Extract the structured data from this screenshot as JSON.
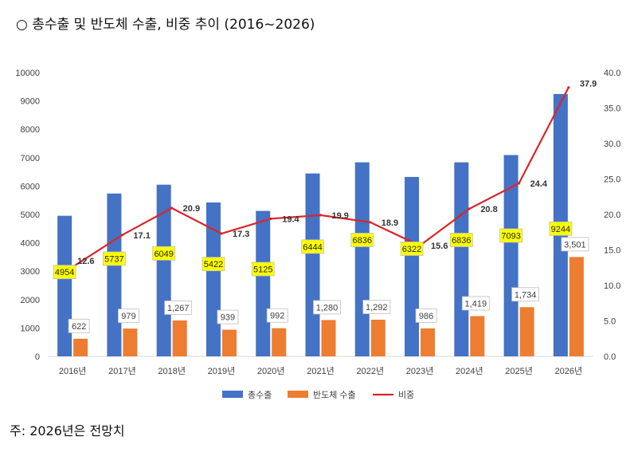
{
  "title": "○ 총수출 및 반도체 수출, 비중 추이 (2016~2026)",
  "note": "주: 2026년은 전망치",
  "chart_data": {
    "type": "bar",
    "categories": [
      "2016년",
      "2017년",
      "2018년",
      "2019년",
      "2020년",
      "2021년",
      "2022년",
      "2023년",
      "2024년",
      "2025년",
      "2026년"
    ],
    "series": [
      {
        "name": "총수출",
        "axis": "left",
        "kind": "bar",
        "color": "#4472C4",
        "values": [
          4954,
          5737,
          6049,
          5422,
          5125,
          6444,
          6836,
          6322,
          6836,
          7093,
          9244
        ],
        "labels": [
          "4954",
          "5737",
          "6049",
          "5422",
          "5125",
          "6444",
          "6836",
          "6322",
          "6836",
          "7093",
          "9244"
        ]
      },
      {
        "name": "반도체 수출",
        "axis": "left",
        "kind": "bar",
        "color": "#ED7D31",
        "values": [
          622,
          979,
          1267,
          939,
          992,
          1280,
          1292,
          986,
          1419,
          1734,
          3501
        ],
        "labels": [
          "622",
          "979",
          "1,267",
          "939",
          "992",
          "1,280",
          "1,292",
          "986",
          "1,419",
          "1,734",
          "3,501"
        ]
      },
      {
        "name": "비중",
        "axis": "right",
        "kind": "line",
        "color": "#D9262B",
        "values": [
          12.6,
          17.1,
          20.9,
          17.3,
          19.4,
          19.9,
          18.9,
          15.6,
          20.8,
          24.4,
          37.9
        ],
        "labels": [
          "12.6",
          "17.1",
          "20.9",
          "17.3",
          "19.4",
          "19.9",
          "18.9",
          "15.6",
          "20.8",
          "24.4",
          "37.9"
        ]
      }
    ],
    "y_left": {
      "min": 0,
      "max": 10000,
      "step": 1000,
      "ticks": [
        "0",
        "1000",
        "2000",
        "3000",
        "4000",
        "5000",
        "6000",
        "7000",
        "8000",
        "9000",
        "10000"
      ]
    },
    "y_right": {
      "min": 0,
      "max": 40,
      "step": 5,
      "ticks": [
        "0.0",
        "5.0",
        "10.0",
        "15.0",
        "20.0",
        "25.0",
        "30.0",
        "35.0",
        "40.0"
      ]
    },
    "grid": false,
    "legend_position": "bottom",
    "highlight_color": "#FFFF00"
  }
}
